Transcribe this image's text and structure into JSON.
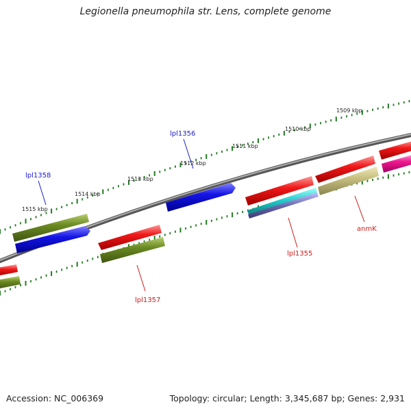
{
  "title": "Legionella pneumophila str. Lens, complete genome",
  "accession": "Accession: NC_006369",
  "topology": "Topology: circular; Length: 3,345,687 bp; Genes: 2,931",
  "scale_labels": [
    "1509 kbp",
    "1510 kbp",
    "1511 kbp",
    "1512 kbp",
    "1513 kbp",
    "1514 kbp",
    "1515 kbp"
  ],
  "gene_labels": [
    {
      "text": "lpl1358",
      "color": "#1a1acc"
    },
    {
      "text": "lpl1356",
      "color": "#1a1acc"
    },
    {
      "text": "lpl1357",
      "color": "#cc1a1a"
    },
    {
      "text": "lpl1355",
      "color": "#cc1a1a"
    },
    {
      "text": "anmK",
      "color": "#cc1a1a"
    }
  ],
  "colors": {
    "backbone": "#8a8a8a",
    "ticks": "#1e7a1e",
    "red": "#f01818",
    "olive": "#6b8a22",
    "blue": "#1414e6",
    "khaki": "#c8c080",
    "cyan": "#20c8c8",
    "purple": "#7070b0",
    "magenta": "#f01890"
  }
}
